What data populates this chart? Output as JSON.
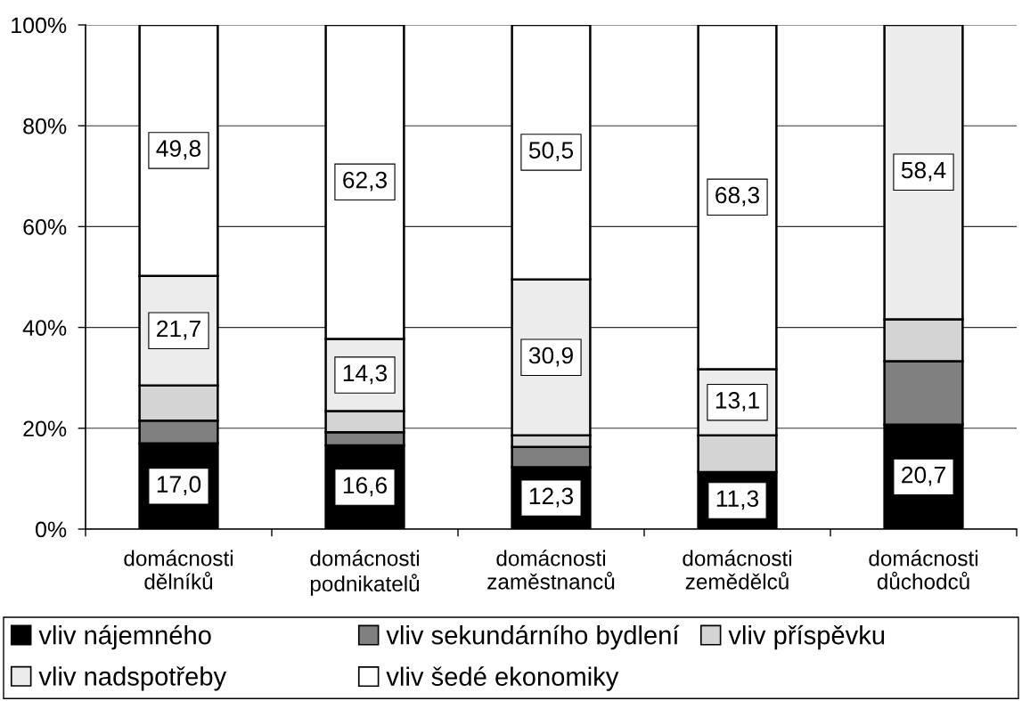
{
  "chart_data": {
    "type": "bar",
    "stacked": true,
    "categories": [
      "domácnosti dělníků",
      "domácnosti podnikatelů",
      "domácnosti zaměstnanců",
      "domácnosti zemědělců",
      "domácnosti důchodců"
    ],
    "series": [
      {
        "name": "vliv nájemného",
        "color": "#000000",
        "values": [
          17.0,
          16.6,
          12.3,
          11.3,
          20.7
        ],
        "value_labels": [
          "17,0",
          "16,6",
          "12,3",
          "11,3",
          "20,7"
        ]
      },
      {
        "name": "vliv sekundárního bydlení",
        "color": "#808080",
        "values": [
          4.5,
          2.6,
          4.0,
          null,
          12.6
        ]
      },
      {
        "name": "vliv příspěvku",
        "color": "#d4d4d4",
        "values": [
          7.0,
          4.2,
          2.3,
          7.3,
          8.3
        ]
      },
      {
        "name": "vliv nadspotřeby",
        "color": "#ececec",
        "values": [
          21.7,
          14.3,
          30.9,
          13.1,
          58.4
        ],
        "value_labels": [
          "21,7",
          "14,3",
          "30,9",
          "13,1",
          "58,4"
        ]
      },
      {
        "name": "vliv šedé ekonomiky",
        "color": "#ffffff",
        "values": [
          49.8,
          62.3,
          50.5,
          68.3,
          null
        ],
        "value_labels": [
          "49,8",
          "62,3",
          "50,5",
          "68,3",
          null
        ]
      }
    ],
    "ylim": [
      0,
      100
    ],
    "yticks": [
      {
        "value": 0,
        "label": "0%"
      },
      {
        "value": 20,
        "label": "20%"
      },
      {
        "value": 40,
        "label": "40%"
      },
      {
        "value": 60,
        "label": "60%"
      },
      {
        "value": 80,
        "label": "80%"
      },
      {
        "value": 100,
        "label": "100%"
      }
    ],
    "grid": "y",
    "legend": "bottom"
  }
}
